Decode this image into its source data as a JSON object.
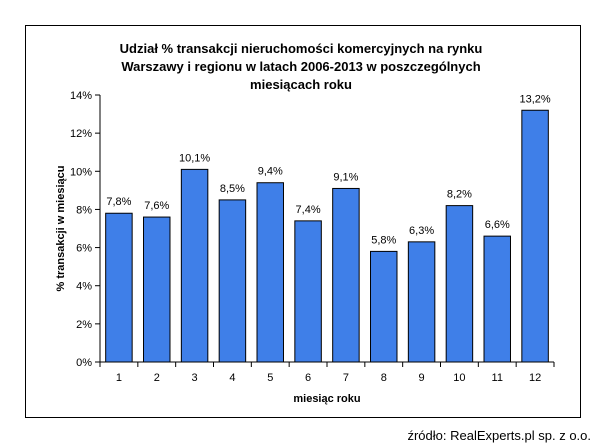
{
  "chart_data": {
    "type": "bar",
    "title": [
      "Udział % transakcji nieruchomości komercyjnych na rynku",
      "Warszawy i regionu w latach 2006-2013  w poszczególnych",
      "miesiącach roku"
    ],
    "xlabel": "miesiąc roku",
    "ylabel": "% transakcji w miesiącu",
    "categories": [
      "1",
      "2",
      "3",
      "4",
      "5",
      "6",
      "7",
      "8",
      "9",
      "10",
      "11",
      "12"
    ],
    "values": [
      7.8,
      7.6,
      10.1,
      8.5,
      9.4,
      7.4,
      9.1,
      5.8,
      6.3,
      8.2,
      6.6,
      13.2
    ],
    "data_labels": [
      "7,8%",
      "7,6%",
      "10,1%",
      "8,5%",
      "9,4%",
      "7,4%",
      "9,1%",
      "5,8%",
      "6,3%",
      "8,2%",
      "6,6%",
      "13,2%"
    ],
    "ylim": [
      0,
      14
    ],
    "yticks": [
      0,
      2,
      4,
      6,
      8,
      10,
      12,
      14
    ],
    "ytick_labels": [
      "0%",
      "2%",
      "4%",
      "6%",
      "8%",
      "10%",
      "12%",
      "14%"
    ],
    "grid": false,
    "legend": "none",
    "bar_color": "#3f7fe8",
    "bar_edge_color": "#000000"
  },
  "source": "źródło: RealExperts.pl sp. z o.o."
}
